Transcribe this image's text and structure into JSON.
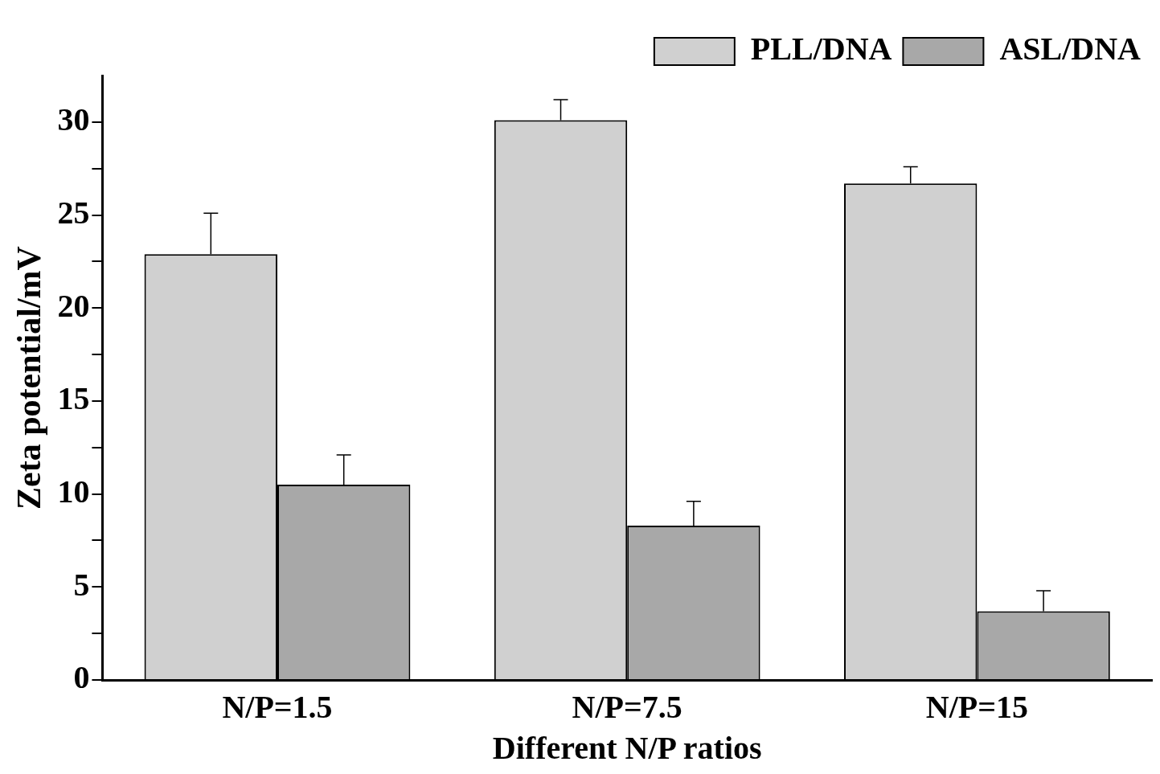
{
  "chart_data": {
    "type": "bar",
    "xlabel": "Different N/P ratios",
    "ylabel": "Zeta potential/mV",
    "categories": [
      "N/P=1.5",
      "N/P=7.5",
      "N/P=15"
    ],
    "series": [
      {
        "name": "PLL/DNA",
        "color": "#d0d0d0",
        "values": [
          22.9,
          30.1,
          26.7
        ],
        "errors": [
          [
            22.9,
            25.1
          ],
          [
            30.1,
            31.2
          ],
          [
            26.7,
            27.6
          ]
        ]
      },
      {
        "name": "ASL/DNA",
        "color": "#a8a8a8",
        "values": [
          10.5,
          8.3,
          3.7
        ],
        "errors": [
          [
            10.5,
            12.1
          ],
          [
            8.3,
            9.6
          ],
          [
            3.7,
            4.8
          ]
        ]
      }
    ],
    "ylim": [
      0,
      32.5
    ],
    "yticks": [
      0,
      {
        "value": 2.5,
        "label": null
      },
      5,
      {
        "value": 7.5,
        "label": null
      },
      10,
      {
        "value": 12.5,
        "label": null
      },
      15,
      {
        "value": 17.5,
        "label": null
      },
      20,
      {
        "value": 22.5,
        "label": null
      },
      25,
      {
        "value": 27.5,
        "label": null
      },
      30
    ],
    "grid": false,
    "legend": "top right"
  }
}
